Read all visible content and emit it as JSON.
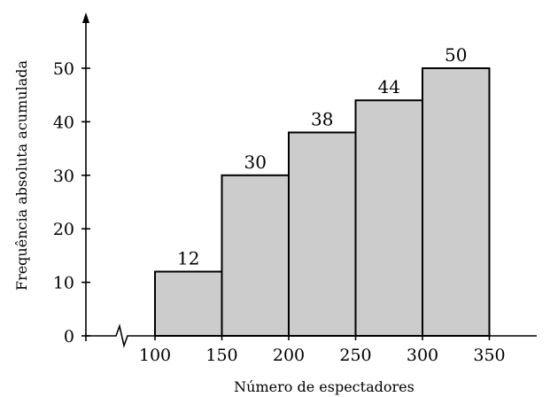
{
  "chart_data": {
    "type": "bar",
    "title": "",
    "xlabel": "Número de espectadores",
    "ylabel": "Frequência absoluta acumulada",
    "bins": [
      [
        100,
        150
      ],
      [
        150,
        200
      ],
      [
        200,
        250
      ],
      [
        250,
        300
      ],
      [
        300,
        350
      ]
    ],
    "values": [
      12,
      30,
      38,
      44,
      50
    ],
    "x_ticks": [
      100,
      150,
      200,
      250,
      300,
      350
    ],
    "y_ticks": [
      0,
      10,
      20,
      30,
      40,
      50
    ],
    "xlim": [
      60,
      400
    ],
    "ylim": [
      0,
      58
    ],
    "x_axis_break": true,
    "grid": false,
    "colors": {
      "bar_fill": "#cccccc",
      "bar_stroke": "#000000"
    }
  }
}
